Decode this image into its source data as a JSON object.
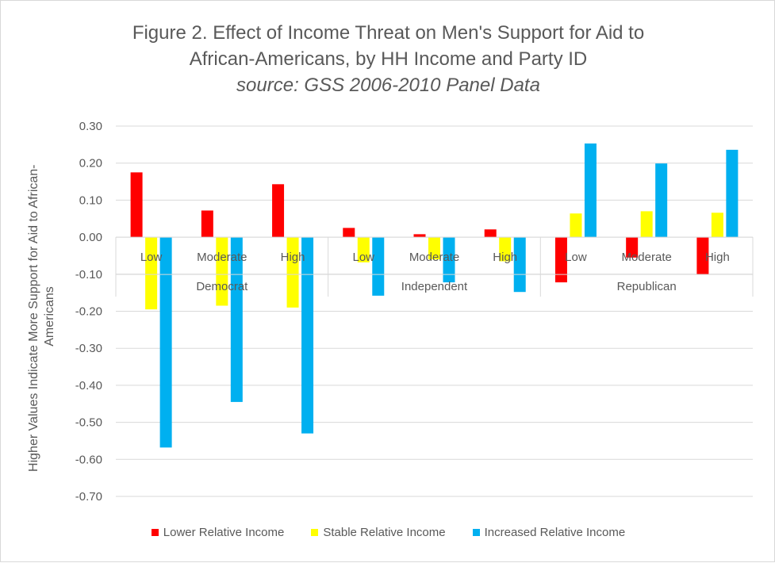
{
  "chart_data": {
    "type": "bar",
    "title": "Figure 2. Effect of Income Threat on Men's Support for Aid to African-Americans, by HH Income and Party ID",
    "title_line1": "Figure 2. Effect of Income Threat on Men's Support for Aid to",
    "title_line2": "African-Americans, by HH Income and Party ID",
    "subtitle": "source: GSS 2006-2010 Panel Data",
    "ylabel_line1": "Higher Values Indicate More Support for Aid to African-",
    "ylabel_line2": "Americans",
    "xlabel": "",
    "ylim": [
      -0.7,
      0.3
    ],
    "yticks": [
      "0.30",
      "0.20",
      "0.10",
      "0.00",
      "-0.10",
      "-0.20",
      "-0.30",
      "-0.40",
      "-0.50",
      "-0.60",
      "-0.70"
    ],
    "groups": [
      "Democrat",
      "Independent",
      "Republican"
    ],
    "categories": [
      "Low",
      "Moderate",
      "High",
      "Low",
      "Moderate",
      "High",
      "Low",
      "Moderate",
      "High"
    ],
    "series": [
      {
        "name": "Lower Relative Income",
        "color": "#ff0000",
        "values": [
          0.175,
          0.072,
          0.143,
          0.025,
          0.008,
          0.021,
          -0.122,
          -0.055,
          -0.1
        ]
      },
      {
        "name": "Stable Relative Income",
        "color": "#ffff00",
        "values": [
          -0.195,
          -0.185,
          -0.19,
          -0.068,
          -0.06,
          -0.065,
          0.064,
          0.07,
          0.066
        ]
      },
      {
        "name": "Increased Relative Income",
        "color": "#00b0f0",
        "values": [
          -0.568,
          -0.445,
          -0.53,
          -0.158,
          -0.122,
          -0.148,
          0.253,
          0.199,
          0.236
        ]
      }
    ],
    "grid": true,
    "legend_position": "bottom"
  }
}
